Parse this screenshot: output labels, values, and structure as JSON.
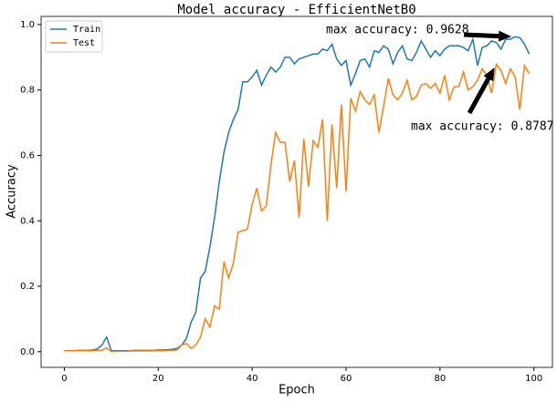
{
  "chart_data": {
    "type": "line",
    "title": "Model accuracy - EfficientNetB0",
    "x_label": "Epoch",
    "y_label": "Accuracy",
    "x": [
      0,
      1,
      2,
      3,
      4,
      5,
      6,
      7,
      8,
      9,
      10,
      11,
      12,
      13,
      14,
      15,
      16,
      17,
      18,
      19,
      20,
      21,
      22,
      23,
      24,
      25,
      26,
      27,
      28,
      29,
      30,
      31,
      32,
      33,
      34,
      35,
      36,
      37,
      38,
      39,
      40,
      41,
      42,
      43,
      44,
      45,
      46,
      47,
      48,
      49,
      50,
      51,
      52,
      53,
      54,
      55,
      56,
      57,
      58,
      59,
      60,
      61,
      62,
      63,
      64,
      65,
      66,
      67,
      68,
      69,
      70,
      71,
      72,
      73,
      74,
      75,
      76,
      77,
      78,
      79,
      80,
      81,
      82,
      83,
      84,
      85,
      86,
      87,
      88,
      89,
      90,
      91,
      92,
      93,
      94,
      95,
      96,
      97,
      98,
      99
    ],
    "series": [
      {
        "name": "Train",
        "color": "#1f77b4",
        "values": [
          0.003,
          0.003,
          0.003,
          0.004,
          0.004,
          0.004,
          0.005,
          0.008,
          0.02,
          0.045,
          0.003,
          0.003,
          0.003,
          0.003,
          0.003,
          0.004,
          0.004,
          0.004,
          0.004,
          0.004,
          0.005,
          0.005,
          0.006,
          0.007,
          0.01,
          0.02,
          0.04,
          0.09,
          0.12,
          0.225,
          0.245,
          0.32,
          0.41,
          0.52,
          0.61,
          0.67,
          0.71,
          0.74,
          0.825,
          0.825,
          0.84,
          0.86,
          0.815,
          0.845,
          0.87,
          0.855,
          0.87,
          0.9,
          0.9,
          0.88,
          0.895,
          0.9,
          0.905,
          0.91,
          0.91,
          0.925,
          0.92,
          0.94,
          0.895,
          0.875,
          0.89,
          0.815,
          0.85,
          0.89,
          0.895,
          0.87,
          0.92,
          0.915,
          0.935,
          0.925,
          0.88,
          0.915,
          0.935,
          0.895,
          0.89,
          0.915,
          0.95,
          0.925,
          0.9,
          0.92,
          0.905,
          0.925,
          0.935,
          0.935,
          0.935,
          0.93,
          0.92,
          0.955,
          0.875,
          0.93,
          0.935,
          0.95,
          0.945,
          0.925,
          0.955,
          0.955,
          0.9628,
          0.96,
          0.94,
          0.91
        ]
      },
      {
        "name": "Test",
        "color": "#ff7f0e",
        "values": [
          0.003,
          0.003,
          0.003,
          0.003,
          0.003,
          0.003,
          0.003,
          0.004,
          0.004,
          0.012,
          0.0,
          0.001,
          0.001,
          0.001,
          0.002,
          0.002,
          0.002,
          0.002,
          0.002,
          0.003,
          0.003,
          0.003,
          0.004,
          0.004,
          0.005,
          0.02,
          0.025,
          0.01,
          0.02,
          0.045,
          0.1,
          0.075,
          0.14,
          0.13,
          0.275,
          0.225,
          0.27,
          0.365,
          0.37,
          0.375,
          0.45,
          0.5,
          0.43,
          0.445,
          0.57,
          0.67,
          0.64,
          0.64,
          0.52,
          0.585,
          0.41,
          0.65,
          0.505,
          0.645,
          0.625,
          0.71,
          0.4,
          0.695,
          0.5,
          0.755,
          0.49,
          0.775,
          0.735,
          0.795,
          0.77,
          0.755,
          0.785,
          0.67,
          0.75,
          0.835,
          0.785,
          0.77,
          0.79,
          0.83,
          0.77,
          0.78,
          0.815,
          0.82,
          0.805,
          0.82,
          0.79,
          0.845,
          0.77,
          0.81,
          0.81,
          0.855,
          0.8,
          0.81,
          0.83,
          0.865,
          0.845,
          0.79,
          0.8787,
          0.86,
          0.82,
          0.865,
          0.84,
          0.74,
          0.875,
          0.85
        ]
      }
    ],
    "annotations": [
      {
        "text": "max accuracy: 0.9628"
      },
      {
        "text": "max accuracy: 0.8787"
      }
    ],
    "xlim": [
      -4.95,
      103.95
    ],
    "ylim": [
      -0.048,
      1.025
    ],
    "xticks": [
      0,
      20,
      40,
      60,
      80,
      100
    ],
    "yticks": [
      {
        "value": 0,
        "label": "0.0"
      },
      0.2,
      0.4,
      0.6,
      0.8,
      {
        "value": 1,
        "label": "1.0"
      }
    ],
    "legend": "upper left"
  }
}
